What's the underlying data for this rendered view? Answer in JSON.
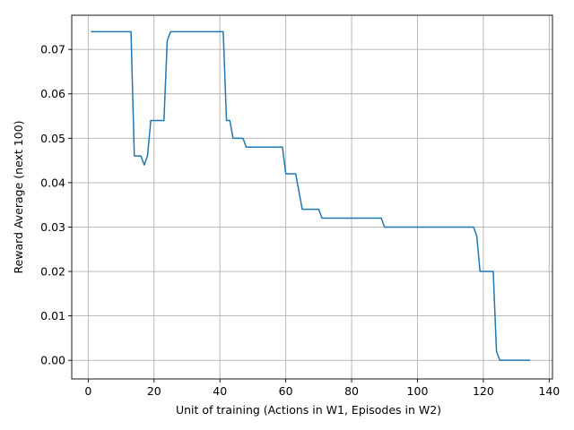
{
  "chart_data": {
    "type": "line",
    "title": "",
    "xlabel": "Unit of training (Actions in W1, Episodes in W2)",
    "ylabel": "Reward Average (next 100)",
    "xlim": [
      -5,
      141
    ],
    "ylim": [
      -0.0042,
      0.0777
    ],
    "xticks": [
      0,
      20,
      40,
      60,
      80,
      100,
      120,
      140
    ],
    "yticks": [
      0.0,
      0.01,
      0.02,
      0.03,
      0.04,
      0.05,
      0.06,
      0.07
    ],
    "xtick_labels": [
      "0",
      "20",
      "40",
      "60",
      "80",
      "100",
      "120",
      "140"
    ],
    "ytick_labels": [
      "0.00",
      "0.01",
      "0.02",
      "0.03",
      "0.04",
      "0.05",
      "0.06",
      "0.07"
    ],
    "grid": true,
    "legend": false,
    "series": [
      {
        "color": "#1f77b4",
        "x": [
          1,
          13,
          14,
          16,
          17,
          18,
          19,
          23,
          24,
          25,
          41,
          42,
          43,
          44,
          47,
          48,
          59,
          60,
          63,
          65,
          70,
          71,
          89,
          90,
          117,
          118,
          119,
          123,
          124,
          125,
          134
        ],
        "y": [
          0.074,
          0.074,
          0.046,
          0.046,
          0.044,
          0.046,
          0.054,
          0.054,
          0.072,
          0.074,
          0.074,
          0.054,
          0.054,
          0.05,
          0.05,
          0.048,
          0.048,
          0.042,
          0.042,
          0.034,
          0.034,
          0.032,
          0.032,
          0.03,
          0.03,
          0.028,
          0.02,
          0.02,
          0.002,
          0.0,
          0.0
        ]
      }
    ]
  }
}
